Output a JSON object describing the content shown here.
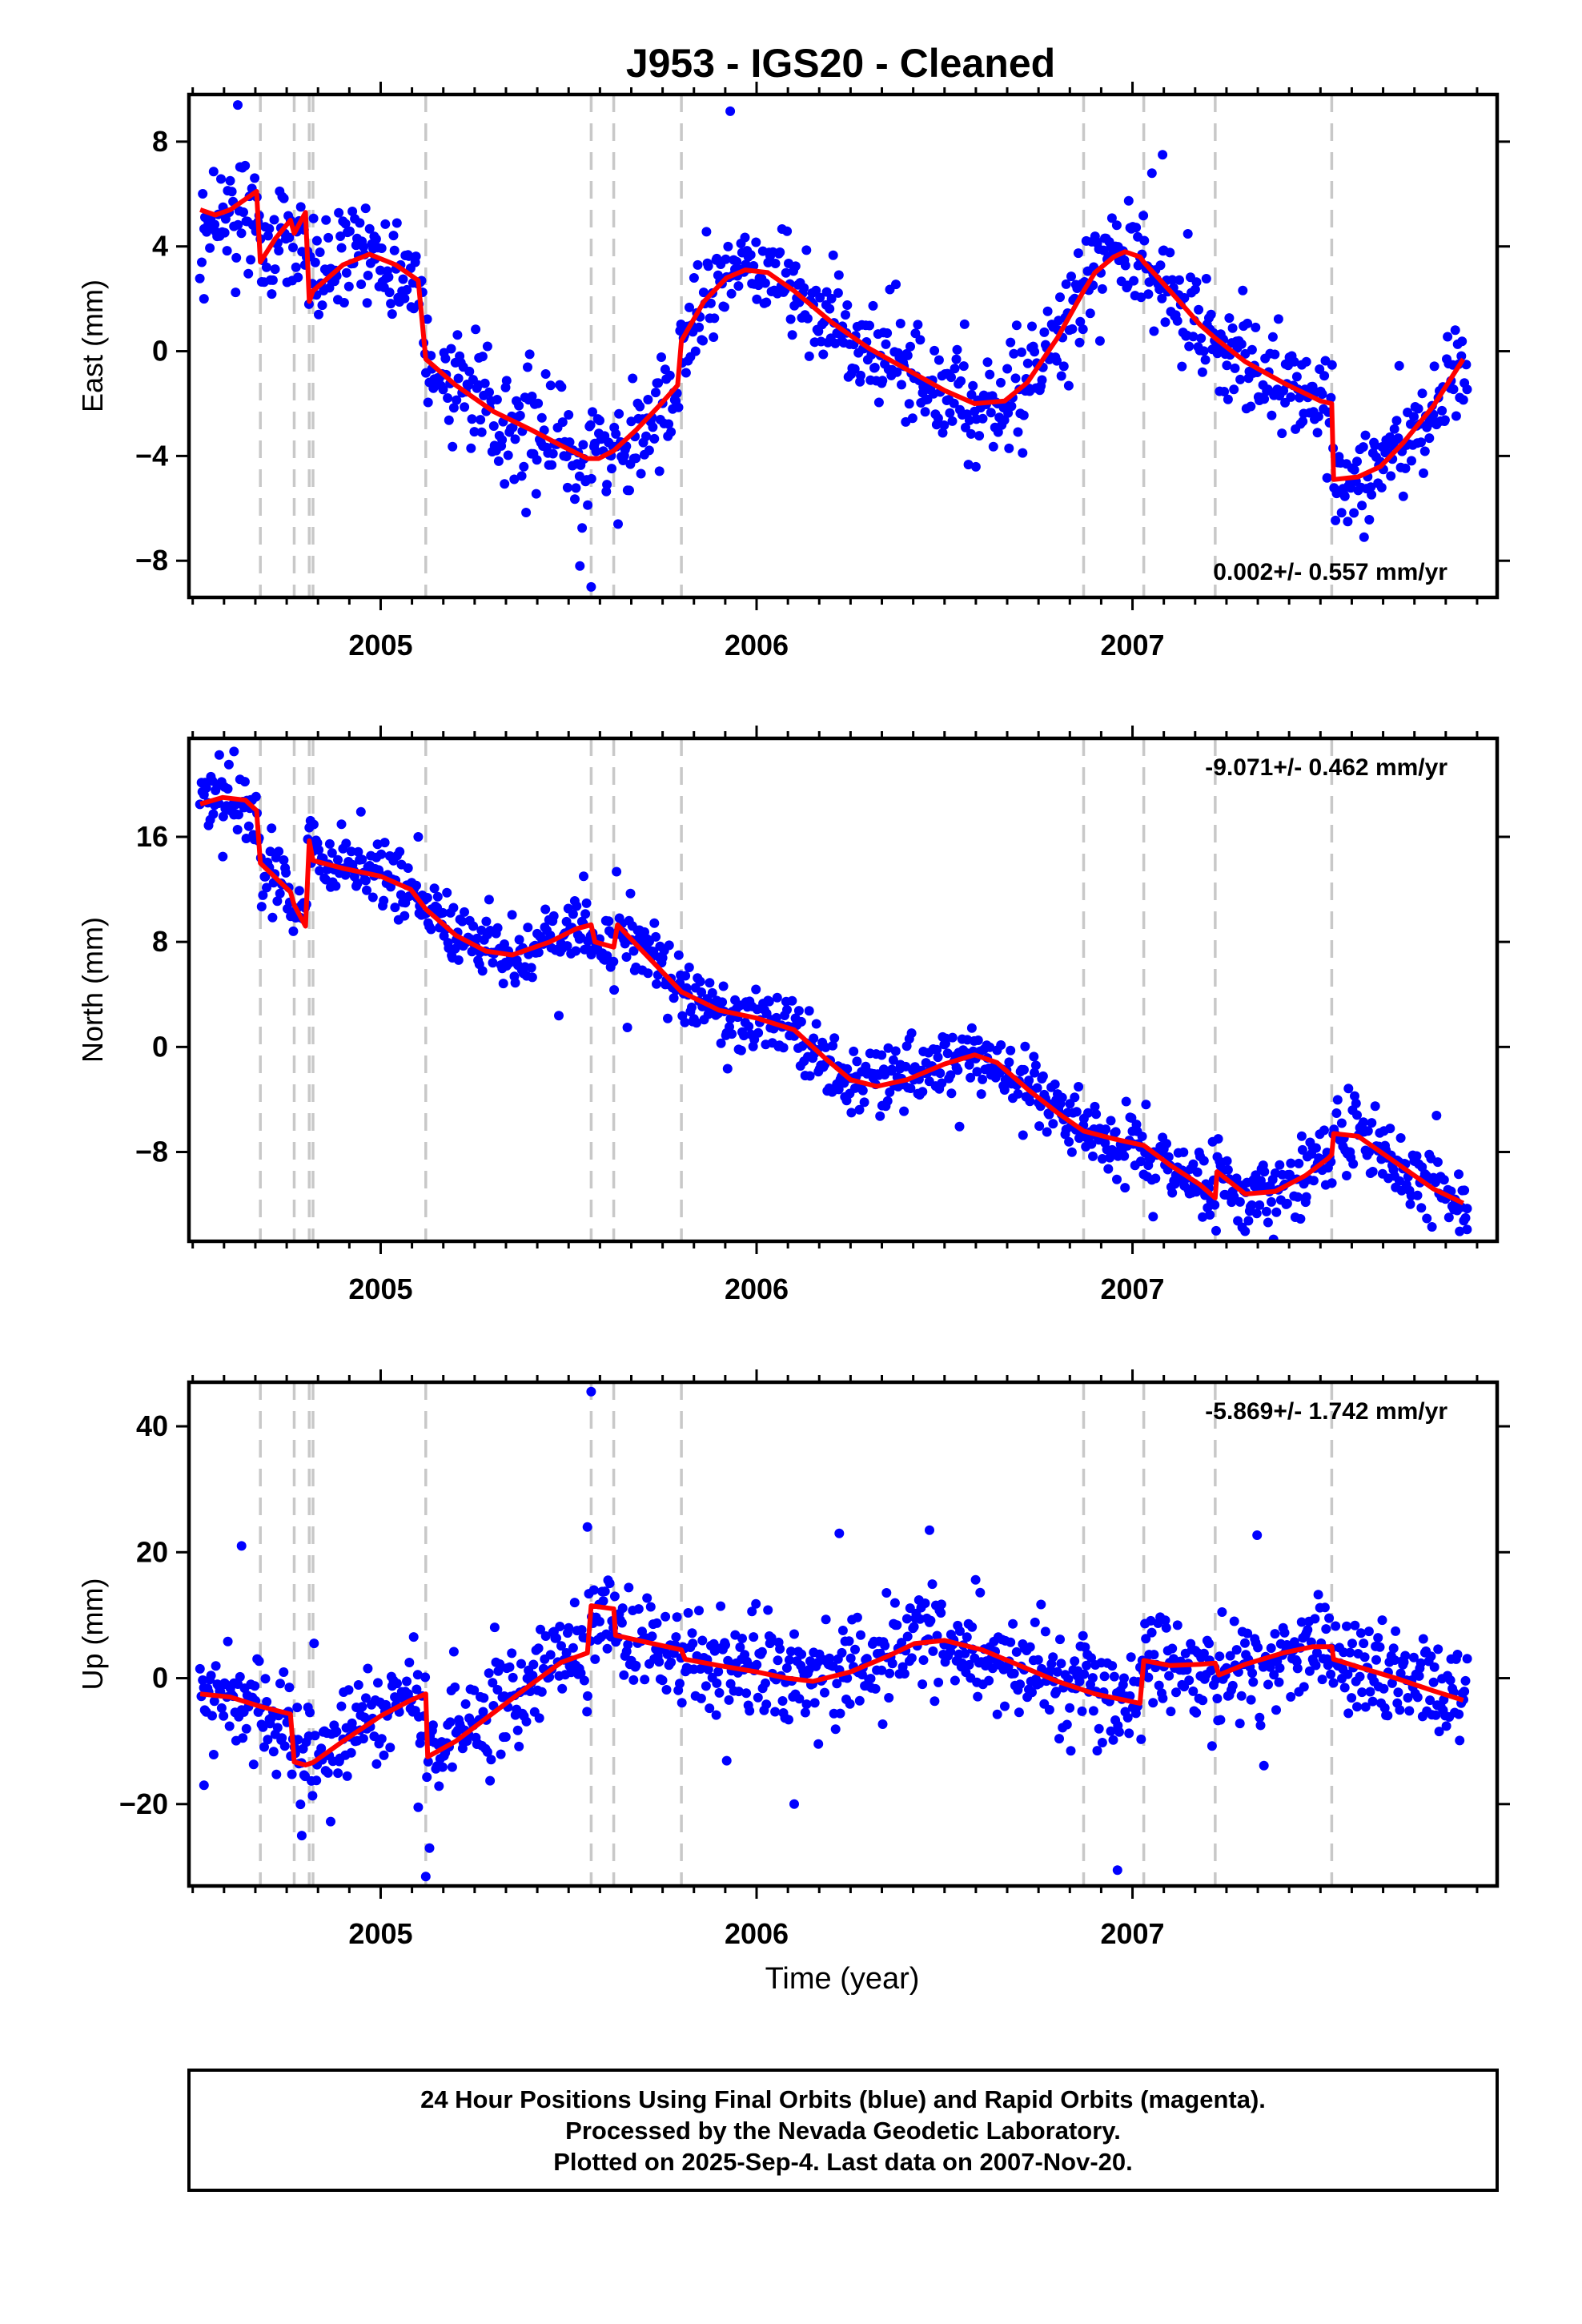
{
  "title": "J953  - IGS20 - Cleaned",
  "xlabel": "Time (year)",
  "footer": [
    "24 Hour Positions Using Final Orbits (blue) and Rapid Orbits (magenta).",
    "Processed by the Nevada Geodetic Laboratory.",
    "Plotted on 2025-Sep-4. Last data on 2007-Nov-20."
  ],
  "colors": {
    "points": "#0000ff",
    "model": "#ff0000",
    "breaks": "#c8c8c8",
    "frame": "#000000"
  },
  "chart_data": [
    {
      "type": "scatter",
      "component": "East",
      "ylabel": "East (mm)",
      "xlim": [
        2004.49,
        2007.97
      ],
      "ylim": [
        -9.4,
        9.8
      ],
      "xticks": [
        "2005",
        "2006",
        "2007"
      ],
      "yticks": [
        "8",
        "4",
        "0",
        "−4",
        "−8"
      ],
      "ytick_values": [
        8,
        4,
        0,
        -4,
        -8
      ],
      "rate_label": "0.002+/- 0.557 mm/yr",
      "rate_position": "bottom-right",
      "breaks": [
        2004.68,
        2004.77,
        2004.81,
        2004.82,
        2005.12,
        2005.56,
        2005.62,
        2005.8,
        2006.87,
        2007.03,
        2007.22,
        2007.53
      ],
      "model": [
        [
          2004.52,
          5.4
        ],
        [
          2004.56,
          5.2
        ],
        [
          2004.6,
          5.4
        ],
        [
          2004.64,
          5.8
        ],
        [
          2004.67,
          6.1
        ],
        [
          2004.68,
          3.4
        ],
        [
          2004.72,
          4.3
        ],
        [
          2004.76,
          5.0
        ],
        [
          2004.77,
          4.5
        ],
        [
          2004.8,
          5.3
        ],
        [
          2004.81,
          1.9
        ],
        [
          2004.82,
          2.3
        ],
        [
          2004.9,
          3.3
        ],
        [
          2004.97,
          3.7
        ],
        [
          2005.04,
          3.3
        ],
        [
          2005.1,
          2.7
        ],
        [
          2005.12,
          -0.3
        ],
        [
          2005.2,
          -1.3
        ],
        [
          2005.3,
          -2.3
        ],
        [
          2005.4,
          -3.0
        ],
        [
          2005.48,
          -3.6
        ],
        [
          2005.55,
          -4.1
        ],
        [
          2005.58,
          -4.1
        ],
        [
          2005.62,
          -3.8
        ],
        [
          2005.68,
          -3.0
        ],
        [
          2005.74,
          -2.1
        ],
        [
          2005.79,
          -1.3
        ],
        [
          2005.8,
          0.4
        ],
        [
          2005.86,
          1.9
        ],
        [
          2005.92,
          2.8
        ],
        [
          2005.97,
          3.1
        ],
        [
          2006.03,
          3.0
        ],
        [
          2006.1,
          2.3
        ],
        [
          2006.2,
          1.1
        ],
        [
          2006.3,
          0.1
        ],
        [
          2006.4,
          -0.7
        ],
        [
          2006.5,
          -1.5
        ],
        [
          2006.58,
          -2.0
        ],
        [
          2006.66,
          -1.9
        ],
        [
          2006.72,
          -1.2
        ],
        [
          2006.8,
          0.5
        ],
        [
          2006.87,
          2.3
        ],
        [
          2006.9,
          3.0
        ],
        [
          2006.95,
          3.6
        ],
        [
          2006.98,
          3.8
        ],
        [
          2007.02,
          3.6
        ],
        [
          2007.03,
          3.4
        ],
        [
          2007.1,
          2.3
        ],
        [
          2007.18,
          1.0
        ],
        [
          2007.22,
          0.5
        ],
        [
          2007.3,
          -0.4
        ],
        [
          2007.4,
          -1.2
        ],
        [
          2007.5,
          -1.9
        ],
        [
          2007.53,
          -2.0
        ],
        [
          2007.535,
          -4.9
        ],
        [
          2007.6,
          -4.8
        ],
        [
          2007.66,
          -4.4
        ],
        [
          2007.72,
          -3.5
        ],
        [
          2007.8,
          -2.1
        ],
        [
          2007.88,
          -0.3
        ]
      ],
      "points_generation": {
        "count": 1050,
        "x_range": [
          2004.52,
          2007.89
        ],
        "scatter_mm": 0.95,
        "extra_points": [
          [
            2004.62,
            9.4
          ],
          [
            2007.08,
            7.5
          ],
          [
            2005.56,
            -9.0
          ],
          [
            2005.53,
            -8.2
          ],
          [
            2004.53,
            2.0
          ]
        ]
      }
    },
    {
      "type": "scatter",
      "component": "North",
      "ylabel": "North (mm)",
      "xlim": [
        2004.49,
        2007.97
      ],
      "ylim": [
        -14.8,
        23.5
      ],
      "xticks": [
        "2005",
        "2006",
        "2007"
      ],
      "yticks": [
        "16",
        "8",
        "0",
        "−8"
      ],
      "ytick_values": [
        16,
        8,
        0,
        -8
      ],
      "rate_label": "-9.071+/- 0.462 mm/yr",
      "rate_position": "top-right",
      "breaks": [
        2004.68,
        2004.77,
        2004.81,
        2004.82,
        2005.12,
        2005.56,
        2005.62,
        2005.8,
        2006.87,
        2007.03,
        2007.22,
        2007.53
      ],
      "model": [
        [
          2004.52,
          18.5
        ],
        [
          2004.58,
          19.0
        ],
        [
          2004.64,
          18.8
        ],
        [
          2004.67,
          18.0
        ],
        [
          2004.68,
          14.0
        ],
        [
          2004.76,
          11.8
        ],
        [
          2004.77,
          10.8
        ],
        [
          2004.8,
          9.2
        ],
        [
          2004.81,
          15.7
        ],
        [
          2004.82,
          14.2
        ],
        [
          2004.9,
          13.6
        ],
        [
          2005.0,
          13.0
        ],
        [
          2005.08,
          12.0
        ],
        [
          2005.12,
          10.5
        ],
        [
          2005.2,
          8.5
        ],
        [
          2005.28,
          7.3
        ],
        [
          2005.35,
          7.0
        ],
        [
          2005.45,
          8.0
        ],
        [
          2005.52,
          9.0
        ],
        [
          2005.56,
          9.3
        ],
        [
          2005.57,
          8.0
        ],
        [
          2005.62,
          7.6
        ],
        [
          2005.63,
          9.3
        ],
        [
          2005.7,
          7.2
        ],
        [
          2005.8,
          4.2
        ],
        [
          2005.9,
          2.8
        ],
        [
          2006.0,
          2.2
        ],
        [
          2006.1,
          1.3
        ],
        [
          2006.18,
          -0.8
        ],
        [
          2006.25,
          -2.5
        ],
        [
          2006.32,
          -3.0
        ],
        [
          2006.4,
          -2.5
        ],
        [
          2006.5,
          -1.3
        ],
        [
          2006.58,
          -0.6
        ],
        [
          2006.64,
          -1.2
        ],
        [
          2006.72,
          -3.2
        ],
        [
          2006.8,
          -5.0
        ],
        [
          2006.87,
          -6.4
        ],
        [
          2006.95,
          -7.0
        ],
        [
          2007.03,
          -7.5
        ],
        [
          2007.1,
          -9.0
        ],
        [
          2007.18,
          -10.5
        ],
        [
          2007.22,
          -11.5
        ],
        [
          2007.225,
          -9.5
        ],
        [
          2007.3,
          -11.2
        ],
        [
          2007.38,
          -11.0
        ],
        [
          2007.46,
          -9.8
        ],
        [
          2007.52,
          -8.5
        ],
        [
          2007.53,
          -8.2
        ],
        [
          2007.535,
          -6.6
        ],
        [
          2007.6,
          -6.8
        ],
        [
          2007.7,
          -8.8
        ],
        [
          2007.8,
          -10.8
        ],
        [
          2007.88,
          -11.9
        ]
      ],
      "points_generation": {
        "count": 1050,
        "x_range": [
          2004.52,
          2007.89
        ],
        "scatter_mm": 1.3,
        "extra_points": [
          [
            2004.61,
            22.5
          ],
          [
            2005.1,
            16.0
          ],
          [
            2005.54,
            13.0
          ],
          [
            2004.58,
            14.5
          ],
          [
            2007.89,
            -13.9
          ]
        ]
      }
    },
    {
      "type": "scatter",
      "component": "Up",
      "ylabel": "Up (mm)",
      "xlim": [
        2004.49,
        2007.97
      ],
      "ylim": [
        -33,
        47
      ],
      "xticks": [
        "2005",
        "2006",
        "2007"
      ],
      "yticks": [
        "40",
        "20",
        "0",
        "−20"
      ],
      "ytick_values": [
        40,
        20,
        0,
        -20
      ],
      "rate_label": "-5.869+/- 1.742 mm/yr",
      "rate_position": "top-right",
      "breaks": [
        2004.68,
        2004.77,
        2004.81,
        2004.82,
        2005.12,
        2005.56,
        2005.62,
        2005.8,
        2006.87,
        2007.03,
        2007.22,
        2007.53
      ],
      "model": [
        [
          2004.52,
          -2.5
        ],
        [
          2004.6,
          -3.0
        ],
        [
          2004.68,
          -4.5
        ],
        [
          2004.76,
          -5.7
        ],
        [
          2004.77,
          -13.3
        ],
        [
          2004.8,
          -13.8
        ],
        [
          2004.82,
          -13.4
        ],
        [
          2004.9,
          -10.0
        ],
        [
          2005.0,
          -6.0
        ],
        [
          2005.08,
          -3.5
        ],
        [
          2005.12,
          -2.5
        ],
        [
          2005.125,
          -12.5
        ],
        [
          2005.2,
          -10.0
        ],
        [
          2005.3,
          -5.5
        ],
        [
          2005.4,
          -1.0
        ],
        [
          2005.48,
          2.5
        ],
        [
          2005.55,
          4.0
        ],
        [
          2005.56,
          11.5
        ],
        [
          2005.62,
          11.0
        ],
        [
          2005.625,
          6.8
        ],
        [
          2005.7,
          5.8
        ],
        [
          2005.8,
          4.5
        ],
        [
          2005.81,
          3.0
        ],
        [
          2005.9,
          2.0
        ],
        [
          2006.0,
          1.0
        ],
        [
          2006.08,
          0.0
        ],
        [
          2006.15,
          -0.5
        ],
        [
          2006.25,
          1.0
        ],
        [
          2006.35,
          3.5
        ],
        [
          2006.42,
          5.5
        ],
        [
          2006.5,
          6.0
        ],
        [
          2006.6,
          4.5
        ],
        [
          2006.7,
          2.0
        ],
        [
          2006.8,
          -0.5
        ],
        [
          2006.9,
          -2.5
        ],
        [
          2007.02,
          -4.0
        ],
        [
          2007.03,
          2.8
        ],
        [
          2007.1,
          2.0
        ],
        [
          2007.18,
          2.2
        ],
        [
          2007.22,
          2.4
        ],
        [
          2007.23,
          0.5
        ],
        [
          2007.3,
          2.2
        ],
        [
          2007.4,
          4.0
        ],
        [
          2007.48,
          5.0
        ],
        [
          2007.53,
          5.0
        ],
        [
          2007.535,
          3.0
        ],
        [
          2007.6,
          1.8
        ],
        [
          2007.7,
          0.0
        ],
        [
          2007.8,
          -2.0
        ],
        [
          2007.88,
          -3.5
        ]
      ],
      "points_generation": {
        "count": 1050,
        "x_range": [
          2004.52,
          2007.89
        ],
        "scatter_mm": 4.0,
        "extra_points": [
          [
            2005.56,
            45.5
          ],
          [
            2004.63,
            21.0
          ],
          [
            2005.12,
            -31.5
          ],
          [
            2006.96,
            -30.5
          ],
          [
            2005.13,
            -27.0
          ],
          [
            2004.79,
            -25.0
          ],
          [
            2005.1,
            -20.5
          ],
          [
            2006.1,
            -20.0
          ],
          [
            2004.53,
            -17.0
          ],
          [
            2005.55,
            24.0
          ],
          [
            2006.46,
            23.5
          ],
          [
            2006.22,
            23.0
          ]
        ]
      }
    }
  ]
}
